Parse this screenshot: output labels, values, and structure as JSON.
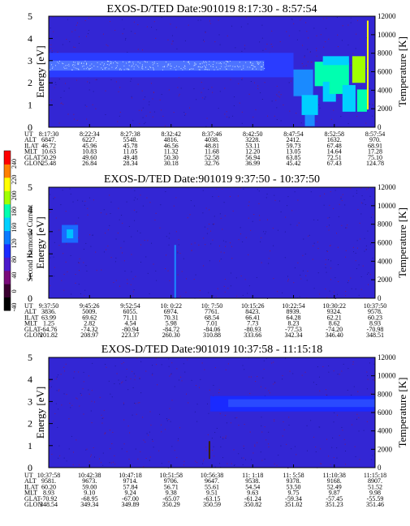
{
  "chart_data": [
    {
      "type": "heatmap",
      "title": "EXOS-D/TED   Date:901019  8:17:30 - 8:57:54",
      "ylabel": "Energy [eV]",
      "y2label": "Temperature [K]",
      "ylim": [
        0,
        5
      ],
      "y2lim": [
        0,
        12000
      ],
      "yticks": [
        "0",
        "1",
        "2",
        "3",
        "4",
        "5"
      ],
      "y2ticks": [
        "0",
        "2000",
        "4000",
        "6000",
        "8000",
        "10000",
        "12000"
      ],
      "row_labels": [
        "UT",
        "ALT",
        "ILAT",
        "MLT",
        "GLAT",
        "GLON"
      ],
      "columns": [
        [
          "8:17:30",
          "6847.",
          "46.72",
          "10.63",
          "50.29",
          "25.48"
        ],
        [
          "8:22:34",
          "6227.",
          "45.96",
          "10.83",
          "49.60",
          "26.84"
        ],
        [
          "8:27:38",
          "5548.",
          "45.78",
          "11.05",
          "49.48",
          "28.34"
        ],
        [
          "8:32:42",
          "4816.",
          "46.56",
          "11.32",
          "50.30",
          "30.18"
        ],
        [
          "8:37:46",
          "4038.",
          "48.81",
          "11.68",
          "52.58",
          "32.76"
        ],
        [
          "8:42:50",
          "3228.",
          "53.11",
          "12.20",
          "56.94",
          "36.99"
        ],
        [
          "8:47:54",
          "2412.",
          "59.73",
          "13.05",
          "63.85",
          "45.42"
        ],
        [
          "8:52:58",
          "1632.",
          "67.48",
          "14.64",
          "72.51",
          "67.43"
        ],
        [
          "8:57:54",
          "970.",
          "68.91",
          "17.28",
          "75.10",
          "124.78"
        ]
      ],
      "features": "steady band at 2.3-3.3 eV across the pass; broadening to high intensity (cyan/green/yellow) near the end of the pass"
    },
    {
      "type": "heatmap",
      "title": "EXOS-D/TED   Date:901019  9:37:50 - 10:37:50",
      "ylabel": "Energy [eV]",
      "y2label": "Temperature [K]",
      "ylim": [
        0,
        5
      ],
      "y2lim": [
        0,
        12000
      ],
      "yticks": [
        "0",
        "1",
        "2",
        "3",
        "4",
        "5"
      ],
      "y2ticks": [
        "0",
        "2000",
        "4000",
        "6000",
        "8000",
        "10000",
        "12000"
      ],
      "row_labels": [
        "UT",
        "ALT",
        "ILAT",
        "MLT",
        "GLAT",
        "GLON"
      ],
      "columns": [
        [
          "9:37:50",
          "3836.",
          "63.99",
          "1.25",
          "-64.76",
          "201.82"
        ],
        [
          "9:45:26",
          "5009.",
          "69.62",
          "2.82",
          "-74.32",
          "208.97"
        ],
        [
          "9:52:54",
          "6055.",
          "71.11",
          "4.54",
          "-80.94",
          "223.37"
        ],
        [
          "10: 0:22",
          "6974.",
          "70.31",
          "5.98",
          "-84.72",
          "260.30"
        ],
        [
          "10: 7:50",
          "7761.",
          "68.54",
          "7.01",
          "-84.06",
          "310.88"
        ],
        [
          "10:15:26",
          "8423.",
          "66.41",
          "7.73",
          "-80.93",
          "333.66"
        ],
        [
          "10:22:54",
          "8939.",
          "64.28",
          "8.23",
          "-77.53",
          "342.34"
        ],
        [
          "10:30:22",
          "9324.",
          "62.21",
          "8.62",
          "-74.20",
          "346.40"
        ],
        [
          "10:37:50",
          "9578.",
          "60.23",
          "8.93",
          "-70.98",
          "348.51"
        ]
      ],
      "features": "mostly background; weak cyan patch near 3 eV at start; thin vertical streak near 10:00"
    },
    {
      "type": "heatmap",
      "title": "EXOS-D/TED   Date:901019  10:37:58 - 11:15:18",
      "ylabel": "Energy [eV]",
      "y2label": "Temperature [K]",
      "ylim": [
        0,
        5
      ],
      "y2lim": [
        0,
        12000
      ],
      "yticks": [
        "0",
        "1",
        "2",
        "3",
        "4",
        "5"
      ],
      "y2ticks": [
        "0",
        "2000",
        "4000",
        "6000",
        "8000",
        "10000",
        "12000"
      ],
      "row_labels": [
        "UT",
        "ALT",
        "ILAT",
        "MLT",
        "GLAT",
        "GLON"
      ],
      "columns": [
        [
          "10:37:58",
          "9581.",
          "60.20",
          "8.93",
          "-70.92",
          "348.54"
        ],
        [
          "10:42:38",
          "9673.",
          "59.00",
          "9.10",
          "-68.95",
          "349.34"
        ],
        [
          "10:47:18",
          "9714.",
          "57.84",
          "9.24",
          "-67.00",
          "349.89"
        ],
        [
          "10:51:58",
          "9706.",
          "56.71",
          "9.38",
          "-65.07",
          "350.29"
        ],
        [
          "10:56:38",
          "9647.",
          "55.61",
          "9.51",
          "-63.15",
          "350.59"
        ],
        [
          "11: 1:18",
          "9538.",
          "54.54",
          "9.63",
          "-61.24",
          "350.82"
        ],
        [
          "11: 5:58",
          "9378.",
          "53.50",
          "9.75",
          "-59.34",
          "351.02"
        ],
        [
          "11:10:38",
          "9168.",
          "52.49",
          "9.87",
          "-57.45",
          "351.23"
        ],
        [
          "11:15:18",
          "8907.",
          "51.52",
          "9.98",
          "-55.59",
          "351.46"
        ]
      ],
      "features": "band at 2.6-3.2 eV appears after about 10:57 and persists to end"
    }
  ],
  "colorbar": {
    "label": "Second Harmonic Current",
    "ticks": [
      "-40",
      "0",
      "40",
      "80",
      "120",
      "160",
      "180",
      "200",
      "220",
      "240"
    ],
    "colors": [
      "#000000",
      "#3a0030",
      "#7a0a7a",
      "#4a1acc",
      "#1a2aff",
      "#0a7aff",
      "#00d0ff",
      "#00ffb0",
      "#a0ff00",
      "#ffff00",
      "#ff8000",
      "#ff0000"
    ]
  },
  "colors": {
    "background_blue": "#3326d4",
    "band_blue": "#2a3cff",
    "band_light": "#6aa0ff"
  }
}
